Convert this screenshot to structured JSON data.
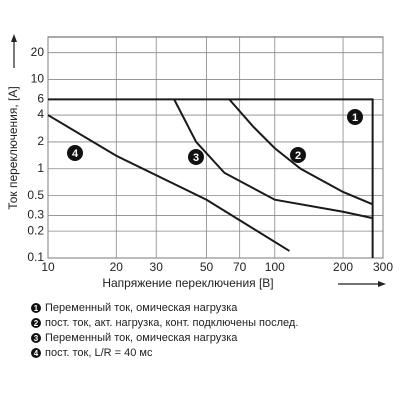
{
  "chart_data": {
    "type": "line",
    "log_x": true,
    "log_y": true,
    "grid": true,
    "x_label": "Напряжение переключения [B]",
    "y_label": "Ток переключения, [A]",
    "xlim": [
      10,
      300
    ],
    "ylim": [
      0.1,
      30
    ],
    "xticks": [
      10,
      20,
      30,
      50,
      70,
      100,
      200,
      300
    ],
    "yticks": [
      0.1,
      0.2,
      0.3,
      0.5,
      1,
      2,
      4,
      6,
      10,
      20
    ],
    "series": [
      {
        "name": "1",
        "label": "Переменный ток, омическая нагрузка",
        "color": "#1a1a1a",
        "x": [
          10,
          270,
          270
        ],
        "values": [
          6,
          6,
          0.1
        ]
      },
      {
        "name": "2",
        "label": "пост. ток, акт. нагрузка, конт. подключены послед.",
        "color": "#1a1a1a",
        "x": [
          63,
          80,
          100,
          130,
          200,
          270
        ],
        "values": [
          6,
          3,
          1.7,
          1,
          0.55,
          0.4
        ]
      },
      {
        "name": "3",
        "label": "Переменный ток, омическая нагрузка",
        "color": "#1a1a1a",
        "x": [
          36,
          45,
          60,
          100,
          200,
          270
        ],
        "values": [
          6,
          2,
          0.9,
          0.45,
          0.33,
          0.28
        ]
      },
      {
        "name": "4",
        "label": "пост. ток, L/R = 40 мс",
        "color": "#1a1a1a",
        "x": [
          10,
          20,
          50,
          116
        ],
        "values": [
          4,
          1.4,
          0.45,
          0.12
        ]
      }
    ]
  }
}
